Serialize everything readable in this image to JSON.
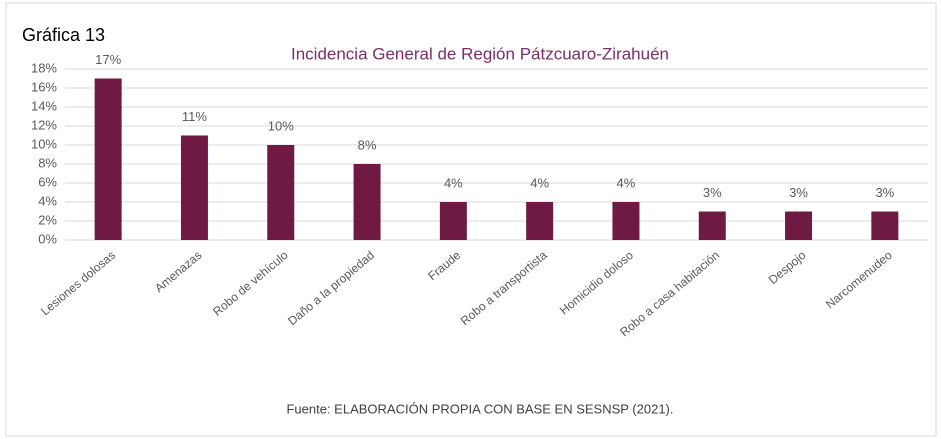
{
  "chart_data": {
    "type": "bar",
    "label": "Gráfica 13",
    "title": "Incidencia General de Región Pátzcuaro-Zirahuén",
    "source": "Fuente: ELABORACIÓN PROPIA CON BASE EN SESNSP (2021).",
    "categories": [
      "Lesiones dolosas",
      "Amenazas",
      "Robo de vehículo",
      "Daño a la propiedad",
      "Fraude",
      "Robo a transportista",
      "Homicidio doloso",
      "Robo a casa habitación",
      "Despojo",
      "Narcomenudeo"
    ],
    "values": [
      17,
      11,
      10,
      8,
      4,
      4,
      4,
      3,
      3,
      3
    ],
    "value_labels": [
      "17%",
      "11%",
      "10%",
      "8%",
      "4%",
      "4%",
      "4%",
      "3%",
      "3%",
      "3%"
    ],
    "color": "#6e1a43",
    "ylim": [
      0,
      18
    ],
    "yticks": [
      {
        "value": 0,
        "label": "0%"
      },
      {
        "value": 2,
        "label": "2%"
      },
      {
        "value": 4,
        "label": "4%"
      },
      {
        "value": 6,
        "label": "6%"
      },
      {
        "value": 8,
        "label": "8%"
      },
      {
        "value": 10,
        "label": "10%"
      },
      {
        "value": 12,
        "label": "12%"
      },
      {
        "value": 14,
        "label": "14%"
      },
      {
        "value": 16,
        "label": "16%"
      },
      {
        "value": 18,
        "label": "18%"
      }
    ],
    "grid": true
  }
}
